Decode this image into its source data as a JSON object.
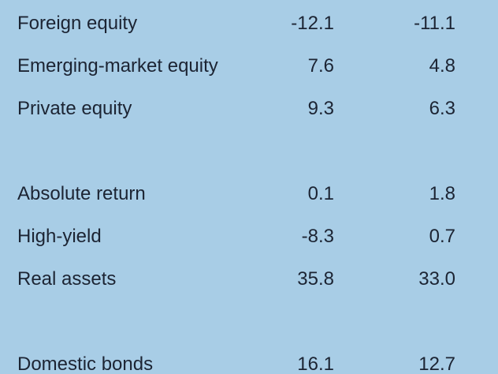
{
  "table": {
    "groups": [
      {
        "rows": [
          [
            "Foreign equity",
            "-12.1",
            "-11.1"
          ],
          [
            "Emerging-market equity",
            "7.6",
            "4.8"
          ],
          [
            "Private equity",
            "9.3",
            "6.3"
          ]
        ]
      },
      {
        "rows": [
          [
            "Absolute return",
            "0.1",
            "1.8"
          ],
          [
            "High-yield",
            "-8.3",
            "0.7"
          ],
          [
            "Real assets",
            "35.8",
            "33.0"
          ]
        ]
      },
      {
        "rows": [
          [
            "Domestic bonds",
            "16.1",
            "12.7"
          ]
        ]
      }
    ]
  }
}
